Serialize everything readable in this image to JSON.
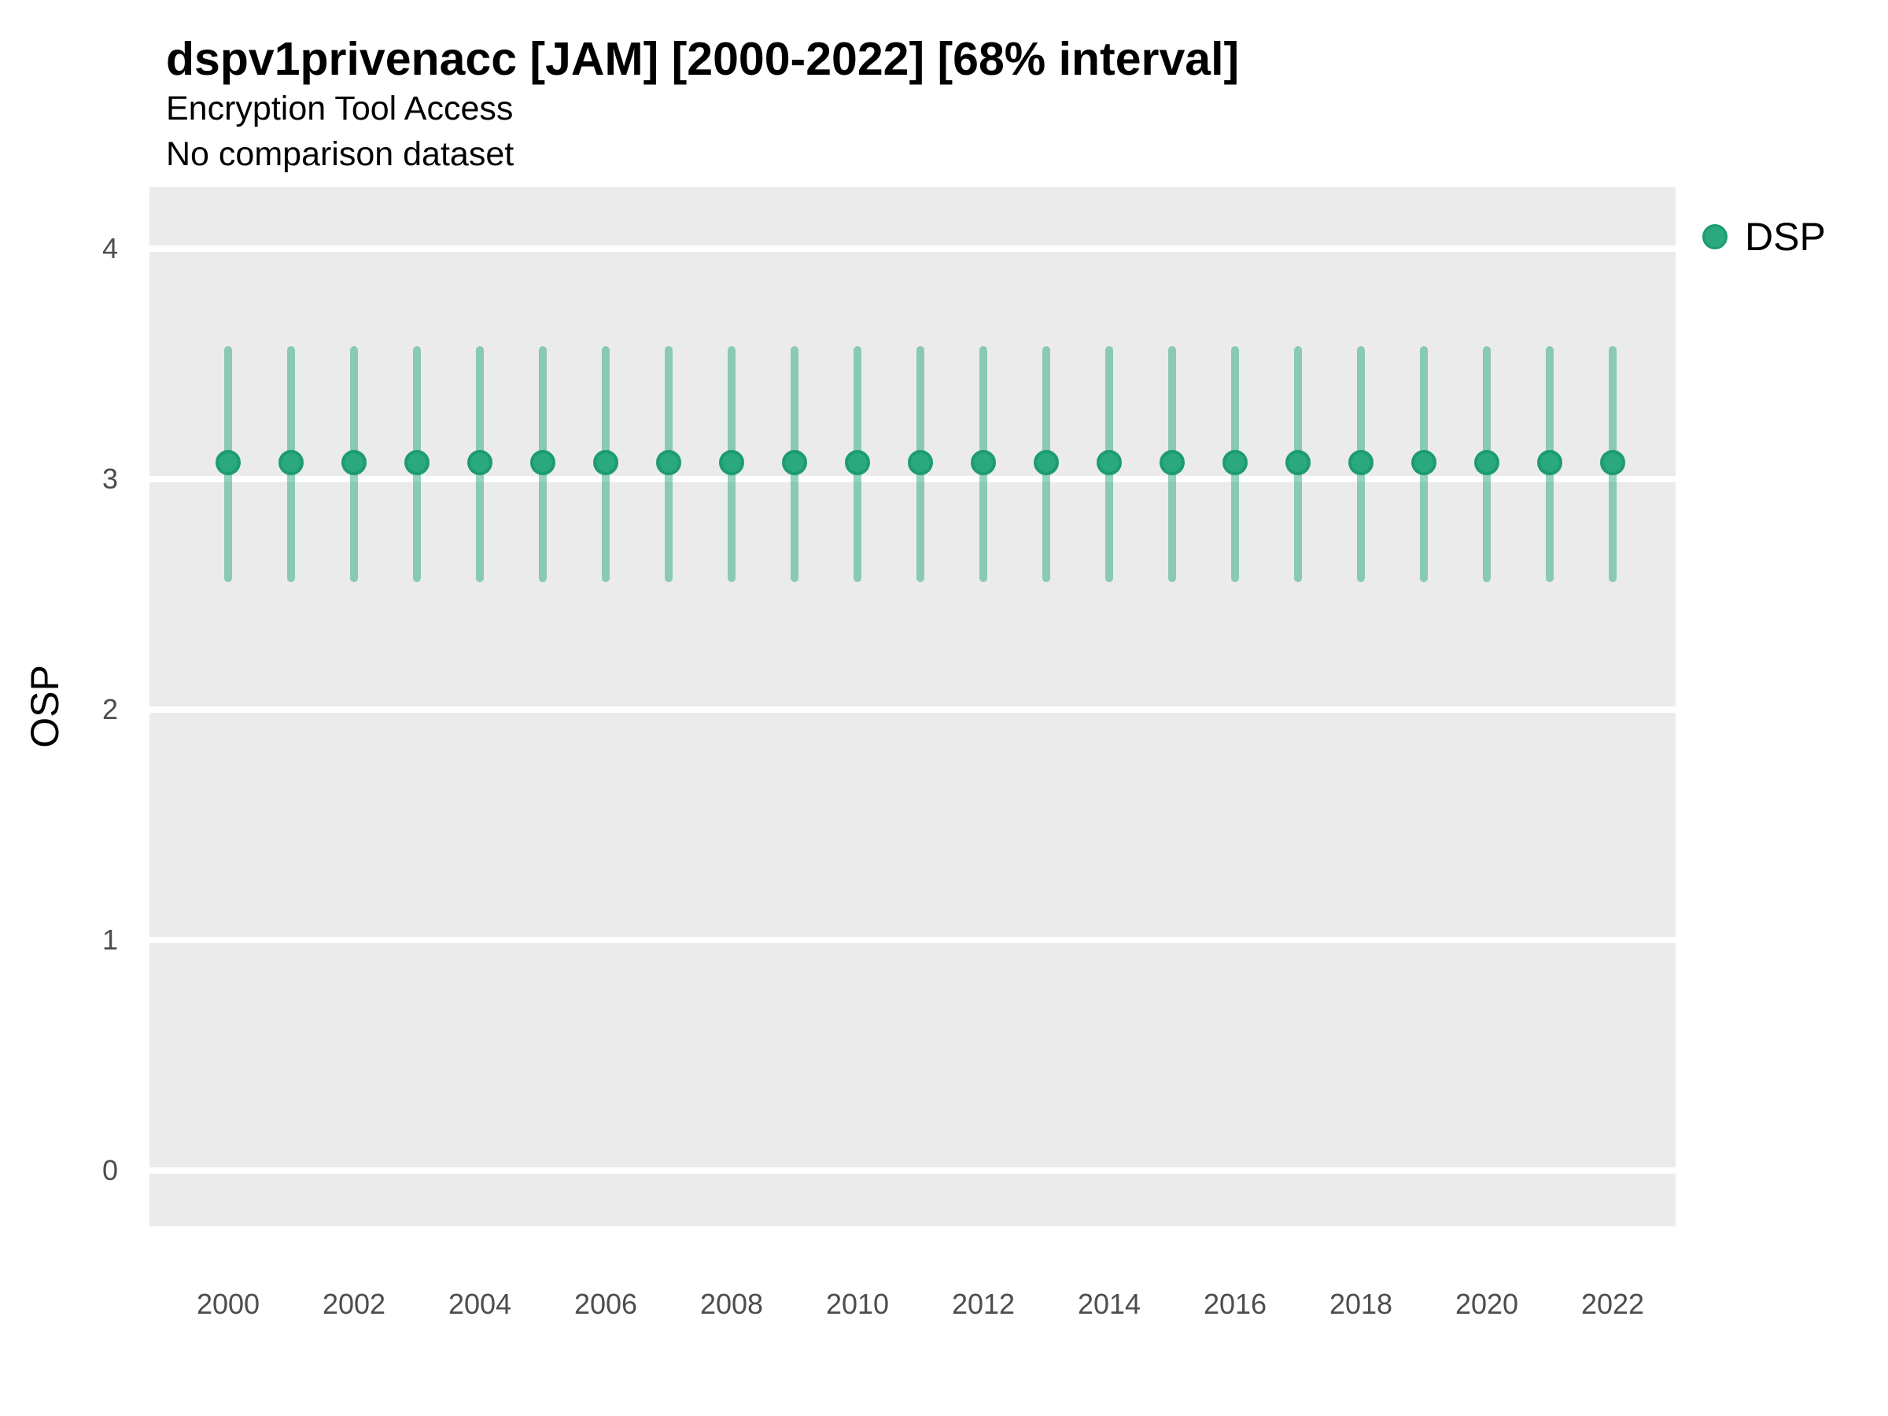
{
  "header": {
    "title": "dspv1privenacc [JAM] [2000-2022] [68% interval]",
    "subtitle": "Encryption Tool Access",
    "note": "No comparison dataset"
  },
  "legend": {
    "label": "DSP",
    "position": "right-top",
    "marker": "filled-circle"
  },
  "colors": {
    "point": "#2aa87e",
    "point_edge": "#1d9b71",
    "interval": "#2aa87e",
    "interval_alpha": 0.5,
    "panel_bg": "#ebebeb",
    "grid": "#ffffff",
    "tick_text": "#4d4d4d",
    "text": "#000000"
  },
  "chart_data": {
    "type": "scatter",
    "geom": "pointrange",
    "interval_label": "68% interval",
    "title": "dspv1privenacc [JAM] [2000-2022] [68% interval]",
    "subtitle": "Encryption Tool Access",
    "note": "No comparison dataset",
    "xlabel": "",
    "ylabel": "OSP",
    "xlim": [
      1998.75,
      2023.0
    ],
    "ylim": [
      -0.242,
      4.266
    ],
    "x_ticks": [
      2000,
      2002,
      2004,
      2006,
      2008,
      2010,
      2012,
      2014,
      2016,
      2018,
      2020,
      2022
    ],
    "y_ticks": [
      4,
      3,
      2,
      1,
      0
    ],
    "grid": "major-horizontal-only",
    "legend_position": "right",
    "series": [
      {
        "name": "DSP",
        "years": [
          2000,
          2001,
          2002,
          2003,
          2004,
          2005,
          2006,
          2007,
          2008,
          2009,
          2010,
          2011,
          2012,
          2013,
          2014,
          2015,
          2016,
          2017,
          2018,
          2019,
          2020,
          2021,
          2022
        ],
        "mean": [
          3.07,
          3.07,
          3.07,
          3.07,
          3.07,
          3.07,
          3.07,
          3.07,
          3.07,
          3.07,
          3.07,
          3.07,
          3.07,
          3.07,
          3.07,
          3.07,
          3.07,
          3.07,
          3.07,
          3.07,
          3.07,
          3.07,
          3.07
        ],
        "low": [
          2.57,
          2.57,
          2.57,
          2.57,
          2.57,
          2.57,
          2.57,
          2.57,
          2.57,
          2.57,
          2.57,
          2.57,
          2.57,
          2.57,
          2.57,
          2.57,
          2.57,
          2.57,
          2.57,
          2.57,
          2.57,
          2.57,
          2.57
        ],
        "high": [
          3.56,
          3.56,
          3.56,
          3.56,
          3.56,
          3.56,
          3.56,
          3.56,
          3.56,
          3.56,
          3.56,
          3.56,
          3.56,
          3.56,
          3.56,
          3.56,
          3.56,
          3.56,
          3.56,
          3.56,
          3.56,
          3.56,
          3.56
        ]
      }
    ]
  }
}
